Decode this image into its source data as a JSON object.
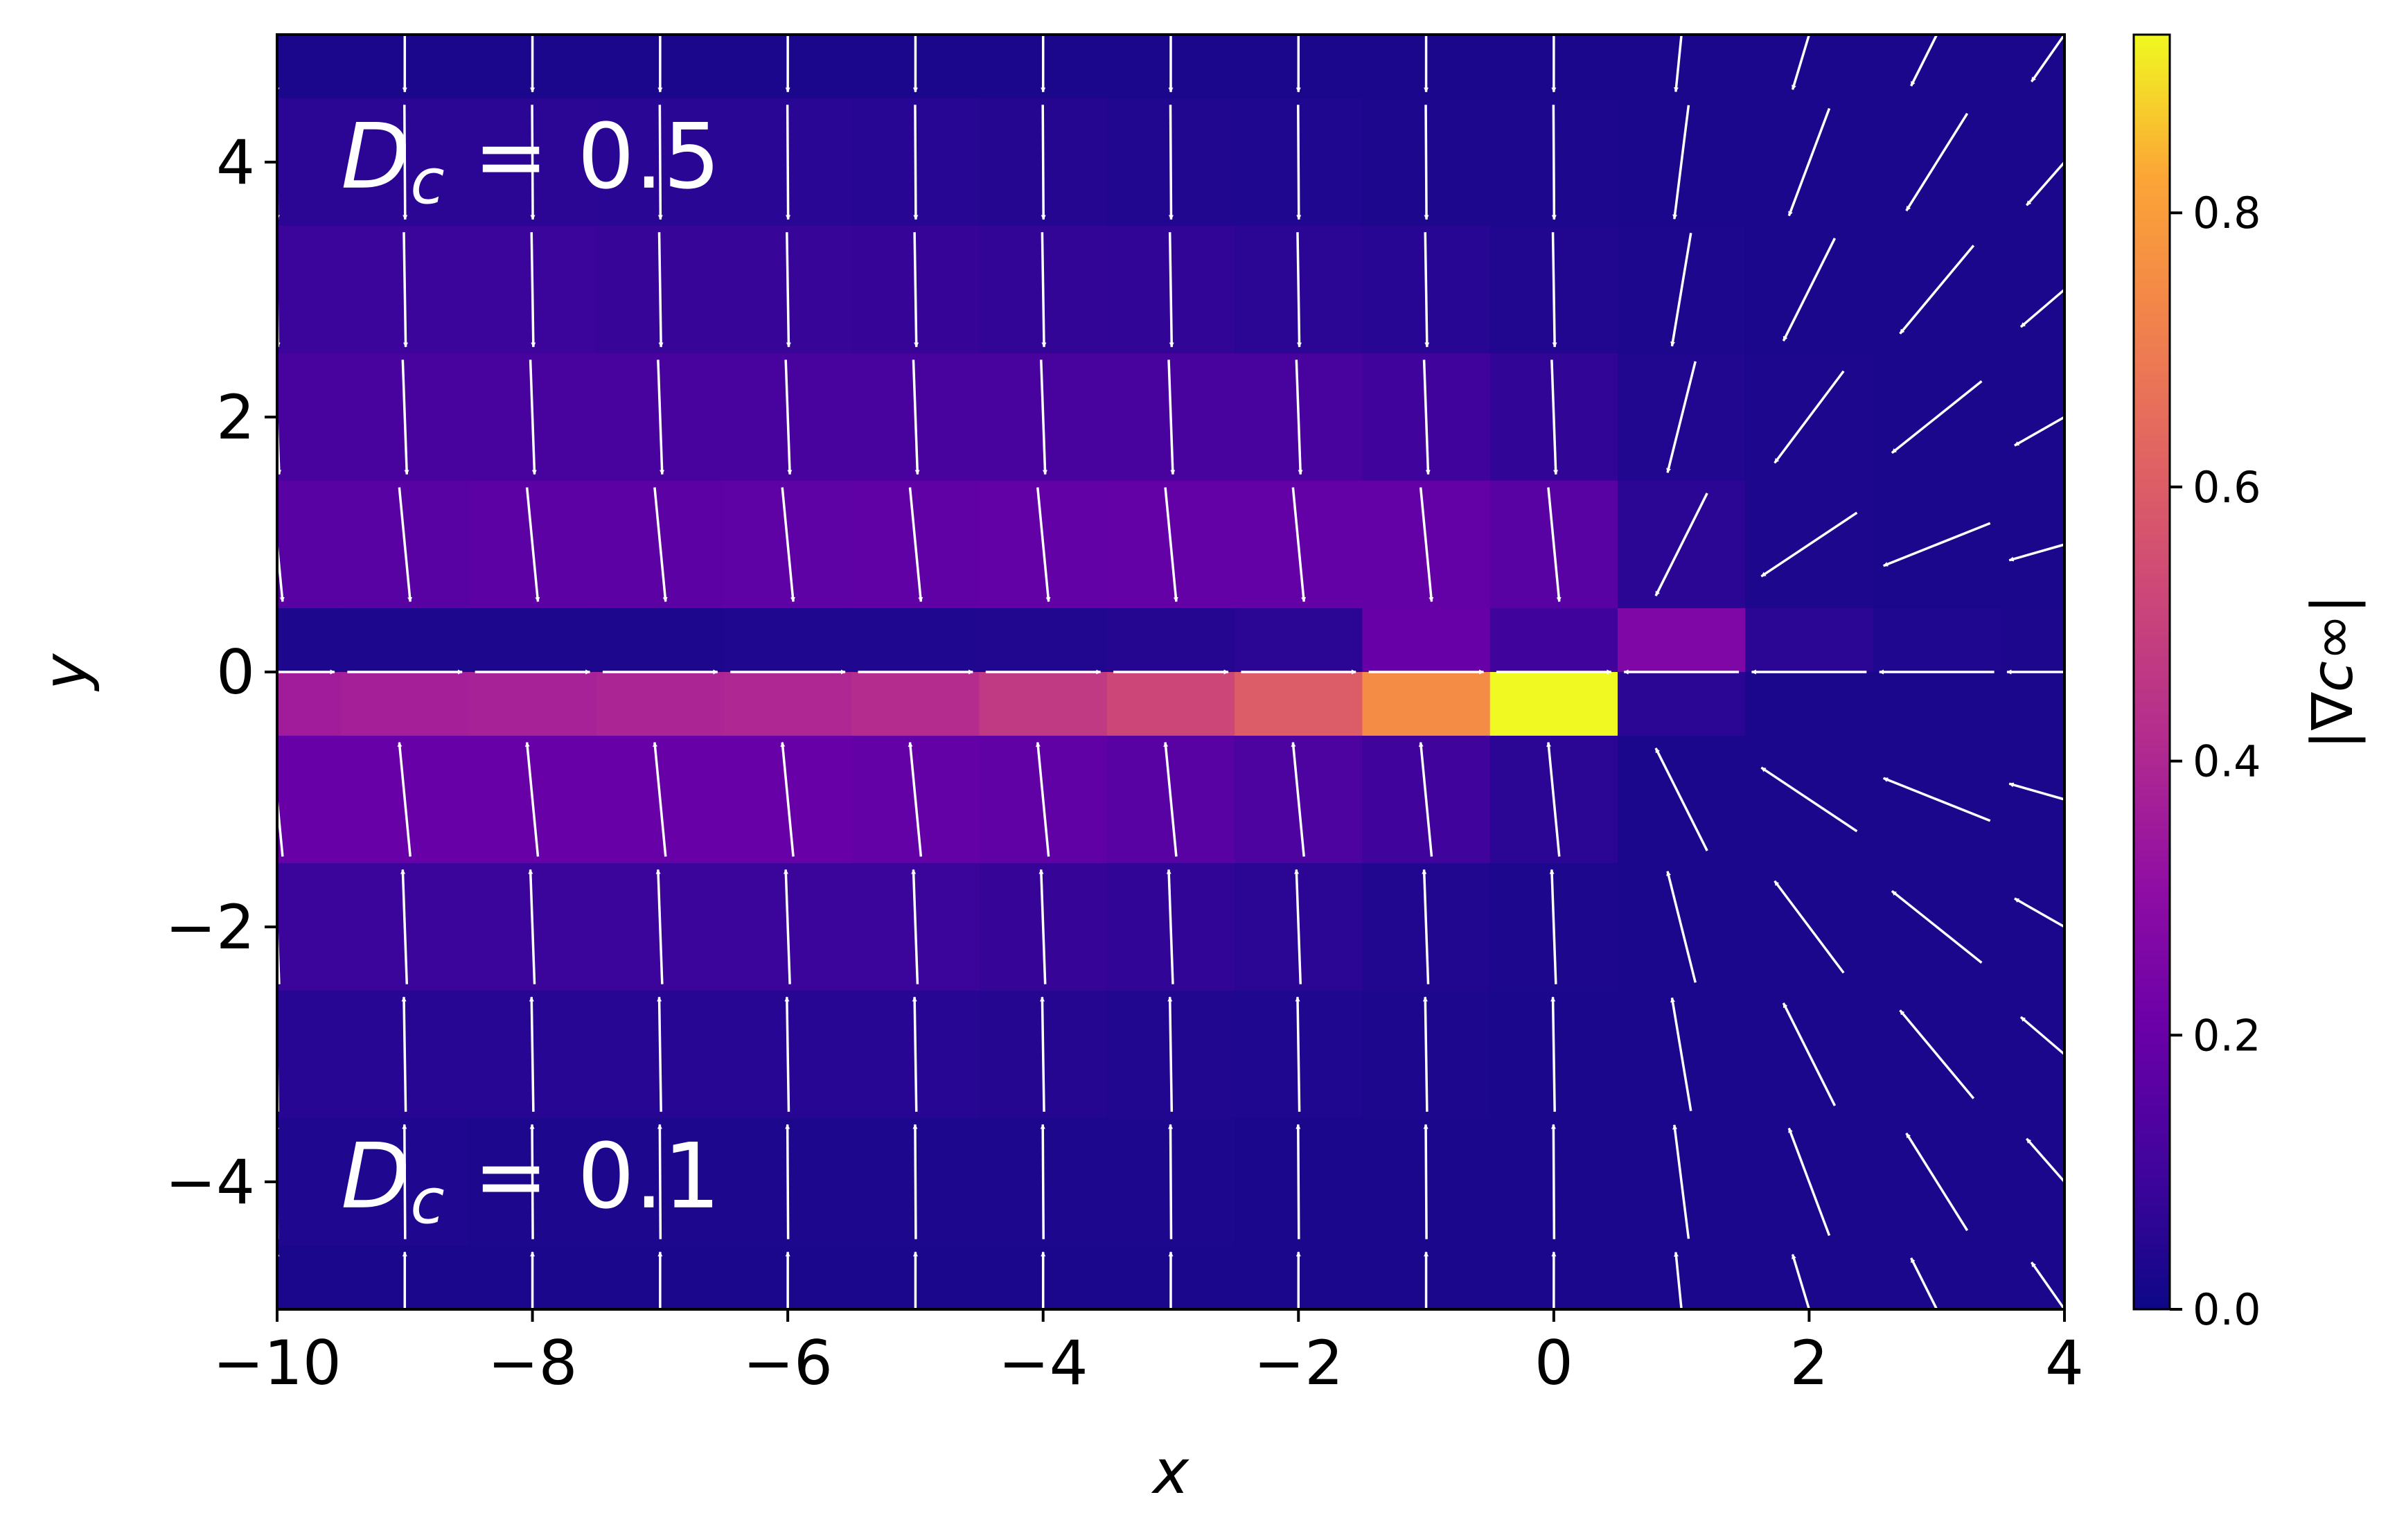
{
  "chart_data": {
    "type": "heatmap",
    "title": "",
    "xlabel": "x",
    "ylabel": "y",
    "xlim": [
      -10,
      4
    ],
    "ylim": [
      -5,
      5
    ],
    "xticks": [
      {
        "value": -10,
        "label": "−10"
      },
      {
        "value": -8,
        "label": "−8"
      },
      {
        "value": -6,
        "label": "−6"
      },
      {
        "value": -4,
        "label": "−4"
      },
      {
        "value": -2,
        "label": "−2"
      },
      {
        "value": 0,
        "label": "0"
      },
      {
        "value": 2,
        "label": "2"
      },
      {
        "value": 4,
        "label": "4"
      }
    ],
    "yticks": [
      {
        "value": -4,
        "label": "−4"
      },
      {
        "value": -2,
        "label": "−2"
      },
      {
        "value": 0,
        "label": "0"
      },
      {
        "value": 2,
        "label": "2"
      },
      {
        "value": 4,
        "label": "4"
      }
    ],
    "grid": false,
    "colormap": "plasma",
    "colorbar": {
      "label": "|∇c∞|",
      "range": [
        0,
        0.93
      ],
      "ticks": [
        {
          "value": 0.0,
          "label": "0.0"
        },
        {
          "value": 0.2,
          "label": "0.2"
        },
        {
          "value": 0.4,
          "label": "0.4"
        },
        {
          "value": 0.6,
          "label": "0.6"
        },
        {
          "value": 0.8,
          "label": "0.8"
        }
      ]
    },
    "heatmap": {
      "x_centers": [
        -10,
        -9,
        -8,
        -7,
        -6,
        -5,
        -4,
        -3,
        -2,
        -1,
        0,
        1,
        2,
        3,
        4
      ],
      "y_centers": [
        5,
        4,
        3,
        2,
        1,
        0,
        -0.5,
        -1,
        -2,
        -3,
        -4,
        -5
      ],
      "values": [
        [
          0.025,
          0.025,
          0.025,
          0.025,
          0.025,
          0.025,
          0.025,
          0.025,
          0.025,
          0.025,
          0.025,
          0.025,
          0.025,
          0.025,
          0.025
        ],
        [
          0.06,
          0.06,
          0.06,
          0.055,
          0.055,
          0.05,
          0.045,
          0.04,
          0.035,
          0.03,
          0.03,
          0.025,
          0.025,
          0.025,
          0.025
        ],
        [
          0.09,
          0.09,
          0.09,
          0.085,
          0.085,
          0.08,
          0.075,
          0.07,
          0.06,
          0.05,
          0.04,
          0.03,
          0.025,
          0.025,
          0.025
        ],
        [
          0.12,
          0.12,
          0.12,
          0.12,
          0.12,
          0.12,
          0.12,
          0.12,
          0.12,
          0.1,
          0.07,
          0.04,
          0.03,
          0.025,
          0.025
        ],
        [
          0.16,
          0.16,
          0.17,
          0.17,
          0.175,
          0.18,
          0.185,
          0.19,
          0.19,
          0.19,
          0.16,
          0.06,
          0.03,
          0.025,
          0.025
        ],
        [
          0.03,
          0.03,
          0.03,
          0.03,
          0.035,
          0.035,
          0.04,
          0.045,
          0.06,
          0.2,
          0.1,
          0.26,
          0.06,
          0.035,
          0.03
        ],
        [
          0.36,
          0.37,
          0.38,
          0.39,
          0.4,
          0.42,
          0.47,
          0.52,
          0.6,
          0.75,
          0.93,
          0.06,
          0.025,
          0.025,
          0.025
        ],
        [
          0.2,
          0.2,
          0.2,
          0.2,
          0.2,
          0.19,
          0.18,
          0.16,
          0.13,
          0.1,
          0.06,
          0.025,
          0.025,
          0.025,
          0.025
        ],
        [
          0.09,
          0.09,
          0.09,
          0.09,
          0.09,
          0.09,
          0.08,
          0.07,
          0.06,
          0.04,
          0.03,
          0.025,
          0.025,
          0.025,
          0.025
        ],
        [
          0.05,
          0.05,
          0.05,
          0.05,
          0.05,
          0.05,
          0.045,
          0.04,
          0.035,
          0.03,
          0.025,
          0.025,
          0.025,
          0.025,
          0.025
        ],
        [
          0.035,
          0.035,
          0.03,
          0.03,
          0.03,
          0.03,
          0.03,
          0.03,
          0.025,
          0.025,
          0.025,
          0.025,
          0.025,
          0.025,
          0.025
        ],
        [
          0.025,
          0.025,
          0.025,
          0.025,
          0.025,
          0.025,
          0.025,
          0.025,
          0.025,
          0.025,
          0.025,
          0.025,
          0.025,
          0.025,
          0.025
        ]
      ]
    },
    "quiver": {
      "color": "#ffffff",
      "x": [
        -10,
        -9,
        -8,
        -7,
        -6,
        -5,
        -4,
        -3,
        -2,
        -1,
        0,
        1,
        2,
        3,
        4
      ],
      "y": [
        5,
        4,
        3,
        2,
        1,
        0,
        -1,
        -2,
        -3,
        -4,
        -5
      ],
      "note_source_description": "unit-length field arrows pointing toward the line segment y=0, x<=0.5"
    },
    "annotations": [
      {
        "text_base": "D",
        "text_sub": "c",
        "text_rest": " = 0.5",
        "region": "upper half"
      },
      {
        "text_base": "D",
        "text_sub": "c",
        "text_rest": " = 0.1",
        "region": "lower half"
      }
    ]
  }
}
